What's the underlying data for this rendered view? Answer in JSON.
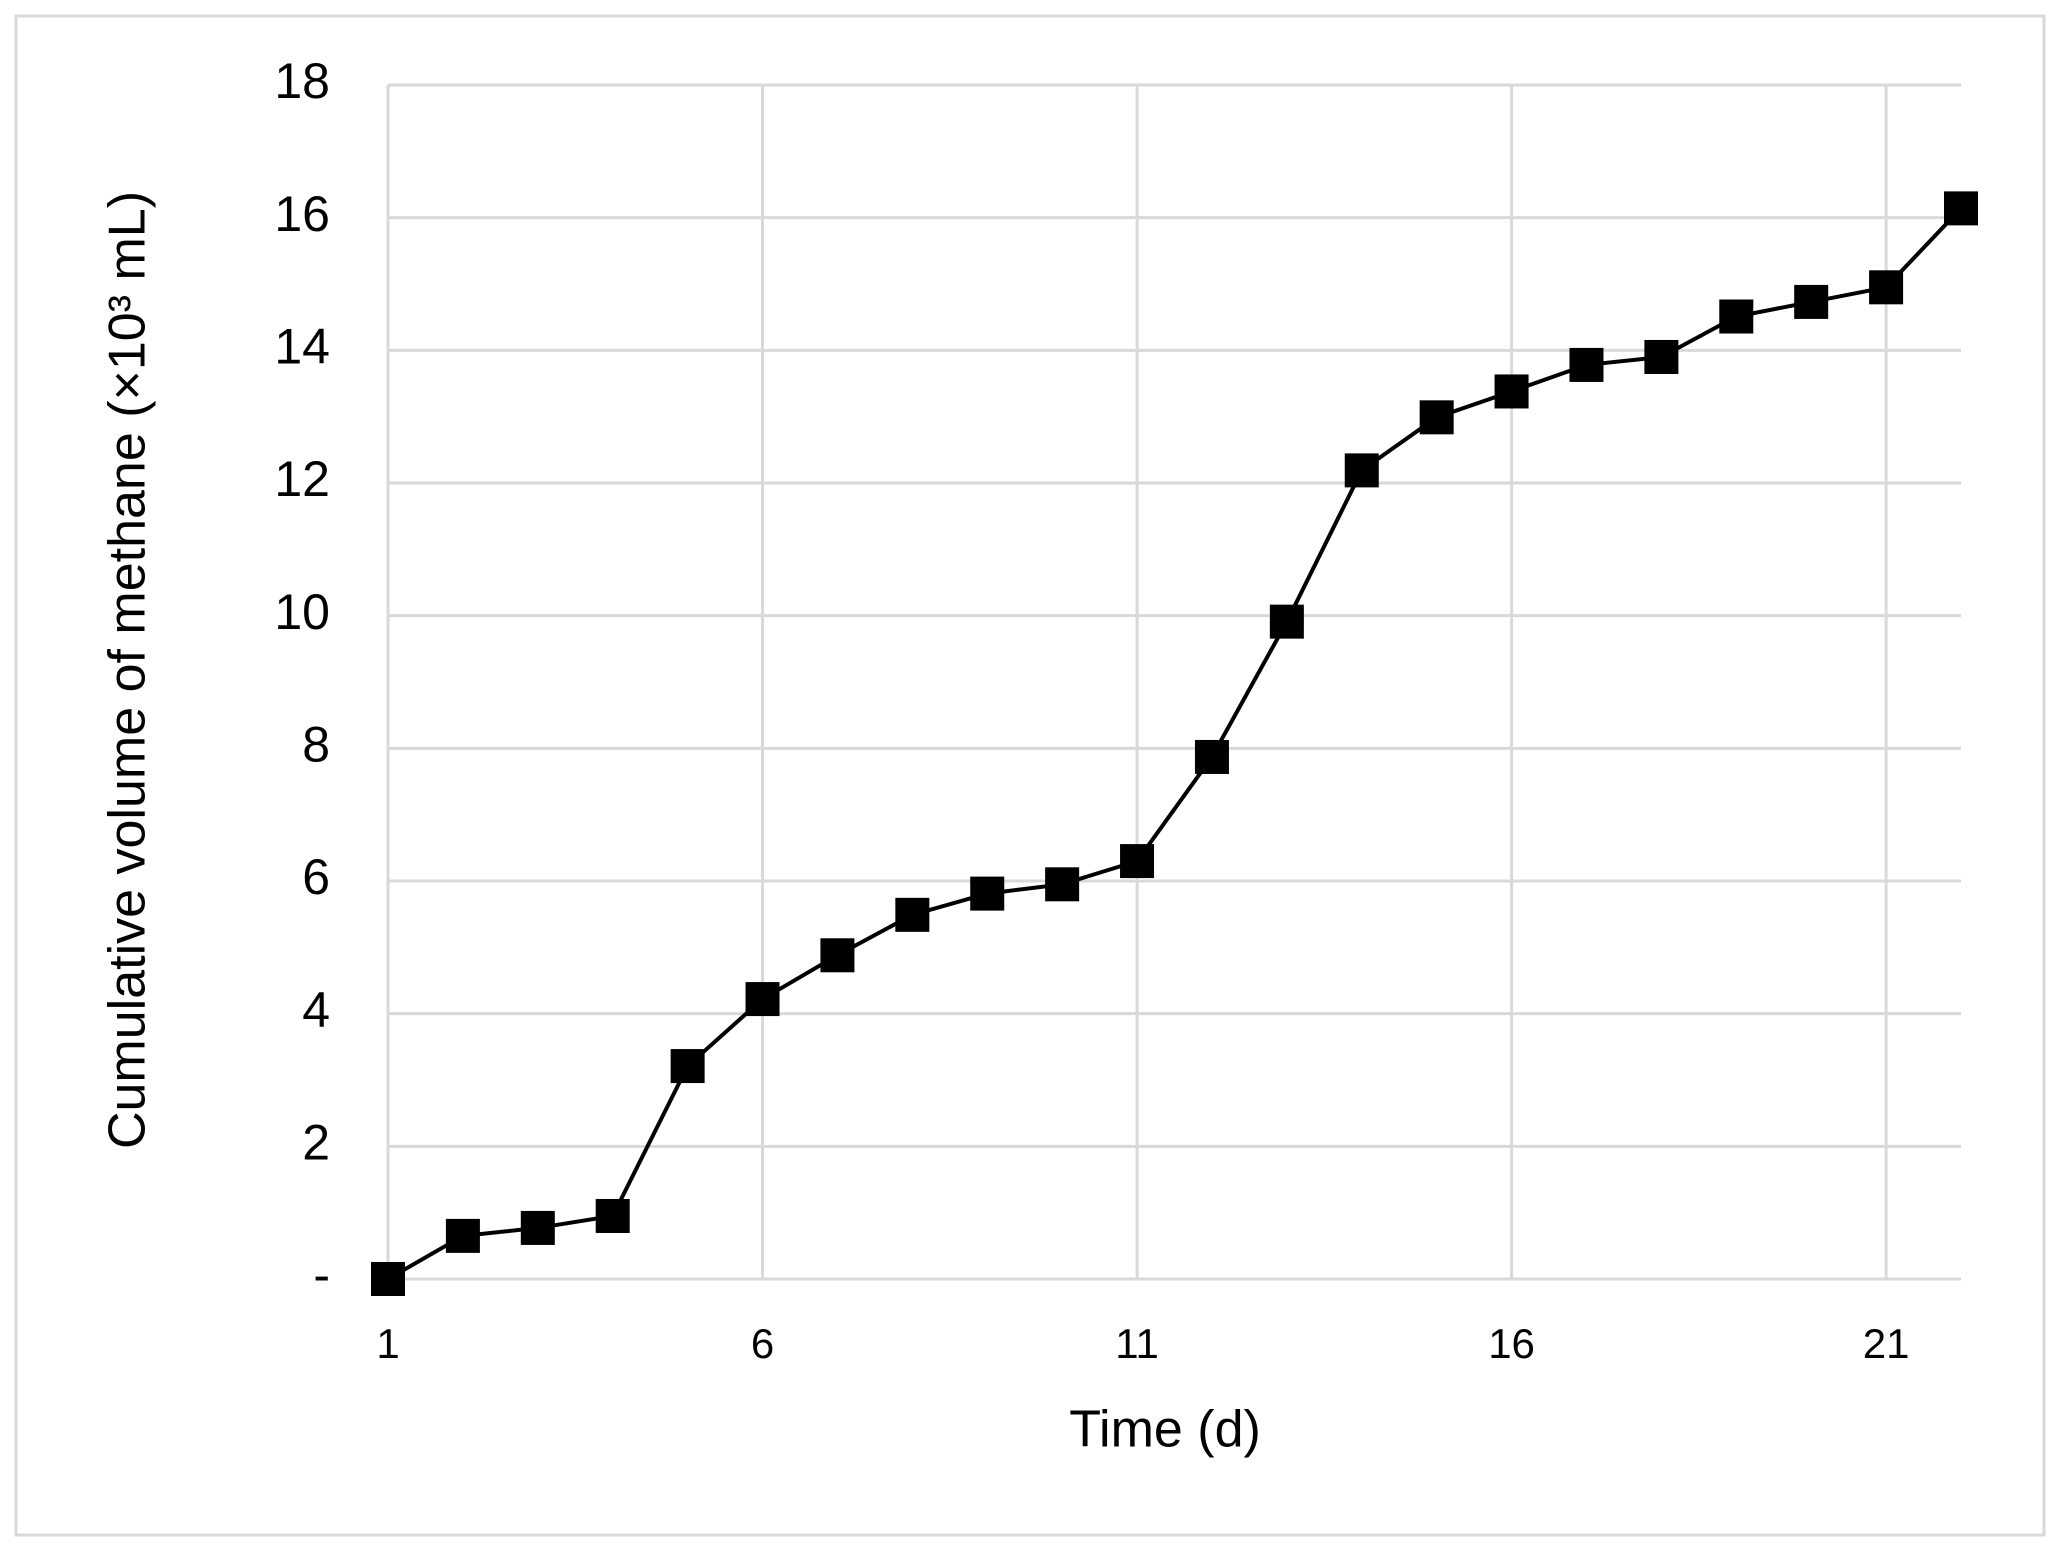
{
  "chart_data": {
    "type": "line",
    "x_label": "Time (d)",
    "y_label": "Cumulative volume of methane (×10³ mL)",
    "x": [
      1,
      2,
      3,
      4,
      5,
      6,
      7,
      8,
      9,
      10,
      11,
      12,
      13,
      14,
      15,
      16,
      17,
      18,
      19,
      20,
      21,
      22
    ],
    "series": [
      {
        "color": "#000000",
        "values": [
          0,
          0.65,
          0.77,
          0.95,
          3.21,
          4.22,
          4.88,
          5.49,
          5.81,
          5.95,
          6.3,
          7.87,
          9.91,
          12.19,
          12.99,
          13.38,
          13.78,
          13.9,
          14.51,
          14.73,
          14.95,
          16.14
        ]
      }
    ],
    "xlim": [
      1,
      22
    ],
    "xticks": [
      1,
      6,
      11,
      16,
      21
    ],
    "ylim": [
      0,
      18
    ],
    "yticks": [
      {
        "value": 0,
        "label": "-"
      },
      2,
      4,
      6,
      8,
      10,
      12,
      14,
      16,
      18
    ],
    "grid": true,
    "marker": "square"
  }
}
